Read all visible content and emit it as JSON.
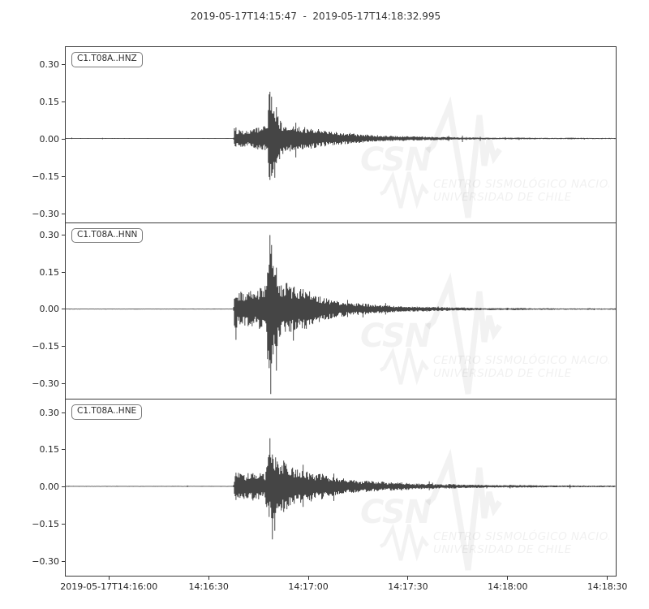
{
  "figure": {
    "title": "2019-05-17T14:15:47  -  2019-05-17T14:18:32.995"
  },
  "watermark": {
    "acronym": "CSN",
    "line1": "CENTRO SISMOLÓGICO NACIONAL",
    "line2": "UNIVERSIDAD DE CHILE"
  },
  "colors": {
    "trace": "#454545",
    "frame": "#3a3a3a",
    "tick_text": "#262626",
    "title_text": "#333333",
    "background": "#ffffff",
    "watermark": "rgba(0,0,0,0.05)"
  },
  "chart_data": {
    "type": "line",
    "subtype": "seismogram-3-component",
    "title": "2019-05-17T14:15:47  -  2019-05-17T14:18:32.995",
    "start_time": "2019-05-17T14:15:47",
    "end_time": "2019-05-17T14:18:32.995",
    "duration_s": 166,
    "xlabel": "",
    "ylabel": "",
    "grid": false,
    "legend_position": "none",
    "xticks": [
      {
        "t": 13,
        "label": "2019-05-17T14:16:00"
      },
      {
        "t": 43,
        "label": "14:16:30"
      },
      {
        "t": 73,
        "label": "14:17:00"
      },
      {
        "t": 103,
        "label": "14:17:30"
      },
      {
        "t": 133,
        "label": "14:18:00"
      },
      {
        "t": 163,
        "label": "14:18:30"
      }
    ],
    "yticks": [
      {
        "v": 0.3,
        "label": "0.30"
      },
      {
        "v": 0.15,
        "label": "0.15"
      },
      {
        "v": 0.0,
        "label": "0.00"
      },
      {
        "v": -0.15,
        "label": "−0.15"
      },
      {
        "v": -0.3,
        "label": "−0.30"
      }
    ],
    "panels": [
      {
        "label": "C1.T08A..HNZ",
        "seed": 101,
        "ylim": [
          -0.341,
          0.372
        ],
        "peak_pos": 0.19,
        "peak_neg": -0.16,
        "p_arrival_s": 51,
        "s_arrival_s": 61.3,
        "envelope": [
          [
            0,
            0.0013
          ],
          [
            50.5,
            0.0013
          ],
          [
            50.9,
            0.06
          ],
          [
            51.5,
            0.036
          ],
          [
            53,
            0.04
          ],
          [
            55,
            0.038
          ],
          [
            57,
            0.044
          ],
          [
            59,
            0.042
          ],
          [
            60.8,
            0.055
          ],
          [
            61.3,
            0.175
          ],
          [
            62,
            0.145
          ],
          [
            62.8,
            0.11
          ],
          [
            63.6,
            0.125
          ],
          [
            64.3,
            0.085
          ],
          [
            65.5,
            0.065
          ],
          [
            67,
            0.058
          ],
          [
            69,
            0.05
          ],
          [
            71.5,
            0.042
          ],
          [
            74,
            0.036
          ],
          [
            77,
            0.03
          ],
          [
            80,
            0.026
          ],
          [
            84,
            0.021
          ],
          [
            88,
            0.017
          ],
          [
            93,
            0.0135
          ],
          [
            98,
            0.011
          ],
          [
            104,
            0.0085
          ],
          [
            110,
            0.0065
          ],
          [
            117,
            0.005
          ],
          [
            125,
            0.004
          ],
          [
            135,
            0.0032
          ],
          [
            147,
            0.0027
          ],
          [
            166,
            0.0022
          ]
        ],
        "needles": [
          [
            61.5,
            0.19
          ],
          [
            61.9,
            0.17
          ],
          [
            62.3,
            -0.14
          ],
          [
            63,
            -0.16
          ]
        ]
      },
      {
        "label": "C1.T08A..HNN",
        "seed": 202,
        "ylim": [
          -0.366,
          0.348
        ],
        "peak_pos": 0.3,
        "peak_neg": -0.345,
        "p_arrival_s": 51,
        "s_arrival_s": 61.3,
        "envelope": [
          [
            0,
            0.0013
          ],
          [
            50.5,
            0.0013
          ],
          [
            50.9,
            0.095
          ],
          [
            51.6,
            0.06
          ],
          [
            53,
            0.068
          ],
          [
            54.5,
            0.075
          ],
          [
            56,
            0.082
          ],
          [
            57.5,
            0.072
          ],
          [
            59,
            0.085
          ],
          [
            60.3,
            0.1
          ],
          [
            61,
            0.27
          ],
          [
            61.7,
            0.3
          ],
          [
            62.4,
            0.2
          ],
          [
            63.2,
            0.225
          ],
          [
            64,
            0.16
          ],
          [
            65,
            0.135
          ],
          [
            66.5,
            0.115
          ],
          [
            68,
            0.1
          ],
          [
            70,
            0.088
          ],
          [
            72.5,
            0.072
          ],
          [
            75,
            0.06
          ],
          [
            78,
            0.048
          ],
          [
            81,
            0.04
          ],
          [
            84.5,
            0.032
          ],
          [
            88,
            0.026
          ],
          [
            92,
            0.021
          ],
          [
            96,
            0.017
          ],
          [
            101,
            0.0135
          ],
          [
            106,
            0.0105
          ],
          [
            112,
            0.008
          ],
          [
            119,
            0.006
          ],
          [
            127,
            0.0048
          ],
          [
            137,
            0.0038
          ],
          [
            150,
            0.003
          ],
          [
            166,
            0.0026
          ]
        ],
        "needles": [
          [
            51.3,
            -0.125
          ],
          [
            61.4,
            0.3
          ],
          [
            61.8,
            -0.345
          ],
          [
            62.1,
            0.26
          ],
          [
            63.4,
            -0.25
          ]
        ]
      },
      {
        "label": "C1.T08A..HNE",
        "seed": 303,
        "ylim": [
          -0.361,
          0.352
        ],
        "peak_pos": 0.19,
        "peak_neg": -0.215,
        "p_arrival_s": 51,
        "s_arrival_s": 61.3,
        "envelope": [
          [
            0,
            0.0013
          ],
          [
            50.5,
            0.0013
          ],
          [
            50.9,
            0.05
          ],
          [
            52,
            0.046
          ],
          [
            54,
            0.052
          ],
          [
            56,
            0.056
          ],
          [
            58,
            0.06
          ],
          [
            60,
            0.065
          ],
          [
            61.2,
            0.17
          ],
          [
            62,
            0.19
          ],
          [
            62.8,
            0.14
          ],
          [
            63.8,
            0.12
          ],
          [
            65,
            0.105
          ],
          [
            66.5,
            0.092
          ],
          [
            68.5,
            0.08
          ],
          [
            71,
            0.068
          ],
          [
            74,
            0.058
          ],
          [
            77,
            0.048
          ],
          [
            80.5,
            0.04
          ],
          [
            84,
            0.033
          ],
          [
            88,
            0.027
          ],
          [
            92.5,
            0.022
          ],
          [
            97,
            0.018
          ],
          [
            102,
            0.0145
          ],
          [
            108,
            0.0115
          ],
          [
            115,
            0.009
          ],
          [
            123,
            0.007
          ],
          [
            132,
            0.0055
          ],
          [
            143,
            0.0045
          ],
          [
            155,
            0.0036
          ],
          [
            166,
            0.003
          ]
        ],
        "needles": [
          [
            61.6,
            0.195
          ],
          [
            62.2,
            -0.215
          ],
          [
            63,
            -0.18
          ]
        ]
      }
    ]
  }
}
